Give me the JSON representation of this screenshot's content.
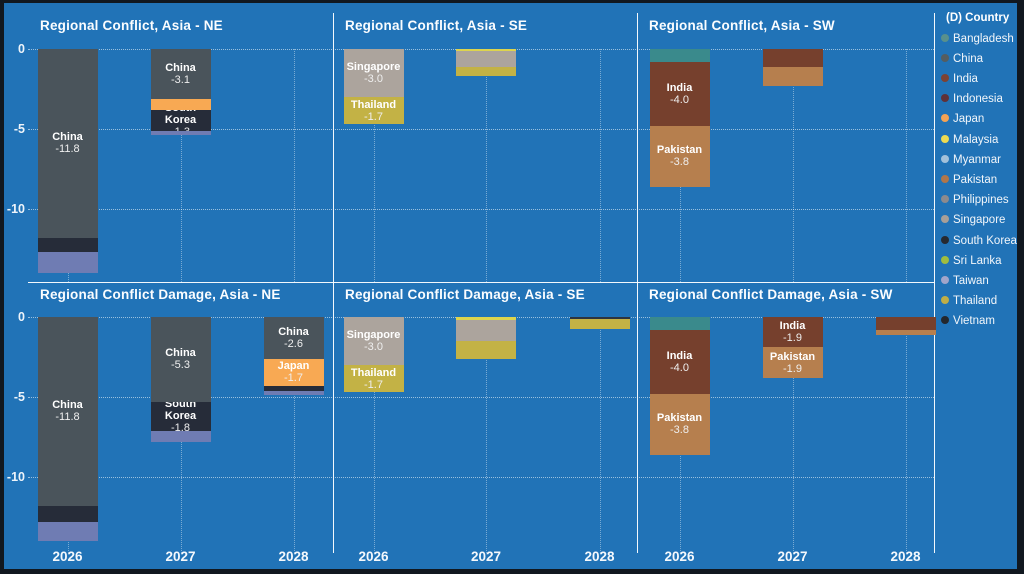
{
  "window": {
    "background_color": "#2173b7",
    "frame_color": "#111820",
    "text_color": "#ffffff"
  },
  "axis": {
    "y_ticks": [
      "0",
      "-5",
      "-10"
    ],
    "years": [
      "2026",
      "2027",
      "2028"
    ]
  },
  "legend": {
    "title": "(D) Country",
    "items": [
      {
        "label": "Bangladesh",
        "color": "#59908c"
      },
      {
        "label": "China",
        "color": "#555d60"
      },
      {
        "label": "India",
        "color": "#7c4233"
      },
      {
        "label": "Indonesia",
        "color": "#5f3138"
      },
      {
        "label": "Japan",
        "color": "#f4a355"
      },
      {
        "label": "Malaysia",
        "color": "#eedb51"
      },
      {
        "label": "Myanmar",
        "color": "#a3c1da"
      },
      {
        "label": "Pakistan",
        "color": "#b0764a"
      },
      {
        "label": "Philippines",
        "color": "#8d8a8d"
      },
      {
        "label": "Singapore",
        "color": "#a89f98"
      },
      {
        "label": "South Korea",
        "color": "#26292f"
      },
      {
        "label": "Sri Lanka",
        "color": "#a0bd3f"
      },
      {
        "label": "Taiwan",
        "color": "#a1a5ca"
      },
      {
        "label": "Thailand",
        "color": "#bfae47"
      },
      {
        "label": "Vietnam",
        "color": "#23272c"
      }
    ]
  },
  "palette": {
    "China": "#4a545b",
    "South Korea": "#262c39",
    "Taiwan": "#6f7cb3",
    "Japan": "#f8a953",
    "Singapore": "#aca49d",
    "Thailand": "#c3b245",
    "Malaysia": "#ddd44e",
    "India": "#76402d",
    "Pakistan": "#b67f4e",
    "Bangladesh": "#3a8a8c",
    "Vietnam": "#2c3440"
  },
  "chart_data": [
    {
      "type": "bar",
      "stacked": true,
      "row": 0,
      "col": 0,
      "title": "Regional Conflict, Asia - NE",
      "xlabel": "",
      "ylabel": "",
      "ylim": [
        -14.6,
        0
      ],
      "grid": "dotted",
      "categories": [
        "2026",
        "2027",
        "2028"
      ],
      "stacks": [
        {
          "year": "2026",
          "segments": [
            {
              "country": "China",
              "value": -11.8,
              "show_label": true
            },
            {
              "country": "South Korea",
              "value": -0.9
            },
            {
              "country": "Taiwan",
              "value": -1.3
            }
          ]
        },
        {
          "year": "2027",
          "segments": [
            {
              "country": "China",
              "value": -3.1,
              "show_label": true
            },
            {
              "country": "Japan",
              "value": -0.7
            },
            {
              "country": "South Korea",
              "value": -1.3,
              "show_label": true
            },
            {
              "country": "Taiwan",
              "value": -0.3
            }
          ]
        },
        {
          "year": "2028",
          "segments": []
        }
      ]
    },
    {
      "type": "bar",
      "stacked": true,
      "row": 0,
      "col": 1,
      "title": "Regional Conflict, Asia - SE",
      "xlabel": "",
      "ylabel": "",
      "ylim": [
        -14.6,
        0
      ],
      "grid": "dotted",
      "categories": [
        "2026",
        "2027",
        "2028"
      ],
      "stacks": [
        {
          "year": "2026",
          "segments": [
            {
              "country": "Singapore",
              "value": -3.0,
              "show_label": true
            },
            {
              "country": "Thailand",
              "value": -1.7,
              "show_label": true
            }
          ]
        },
        {
          "year": "2027",
          "segments": [
            {
              "country": "Malaysia",
              "value": -0.1
            },
            {
              "country": "Singapore",
              "value": -1.05
            },
            {
              "country": "Thailand",
              "value": -0.55
            }
          ]
        },
        {
          "year": "2028",
          "segments": []
        }
      ]
    },
    {
      "type": "bar",
      "stacked": true,
      "row": 0,
      "col": 2,
      "title": "Regional Conflict, Asia - SW",
      "xlabel": "",
      "ylabel": "",
      "ylim": [
        -14.6,
        0
      ],
      "grid": "dotted",
      "categories": [
        "2026",
        "2027",
        "2028"
      ],
      "stacks": [
        {
          "year": "2026",
          "segments": [
            {
              "country": "Bangladesh",
              "value": -0.8
            },
            {
              "country": "India",
              "value": -4.0,
              "show_label": true
            },
            {
              "country": "Pakistan",
              "value": -3.8,
              "show_label": true
            }
          ]
        },
        {
          "year": "2027",
          "segments": [
            {
              "country": "India",
              "value": -1.1
            },
            {
              "country": "Pakistan",
              "value": -1.2
            }
          ]
        },
        {
          "year": "2028",
          "segments": []
        }
      ]
    },
    {
      "type": "bar",
      "stacked": true,
      "row": 1,
      "col": 0,
      "title": "Regional Conflict Damage, Asia - NE",
      "xlabel": "",
      "ylabel": "",
      "ylim": [
        -14.75,
        0
      ],
      "grid": "dotted",
      "categories": [
        "2026",
        "2027",
        "2028"
      ],
      "stacks": [
        {
          "year": "2026",
          "segments": [
            {
              "country": "China",
              "value": -11.8,
              "show_label": true
            },
            {
              "country": "South Korea",
              "value": -1.0
            },
            {
              "country": "Taiwan",
              "value": -1.2
            }
          ]
        },
        {
          "year": "2027",
          "segments": [
            {
              "country": "China",
              "value": -5.3,
              "show_label": true
            },
            {
              "country": "South Korea",
              "value": -1.8,
              "show_label": true
            },
            {
              "country": "Taiwan",
              "value": -0.7
            }
          ]
        },
        {
          "year": "2028",
          "segments": [
            {
              "country": "China",
              "value": -2.6,
              "show_label": true
            },
            {
              "country": "Japan",
              "value": -1.7,
              "show_label": true
            },
            {
              "country": "South Korea",
              "value": -0.35
            },
            {
              "country": "Taiwan",
              "value": -0.25
            }
          ]
        }
      ]
    },
    {
      "type": "bar",
      "stacked": true,
      "row": 1,
      "col": 1,
      "title": "Regional Conflict Damage, Asia - SE",
      "xlabel": "",
      "ylabel": "",
      "ylim": [
        -14.75,
        0
      ],
      "grid": "dotted",
      "categories": [
        "2026",
        "2027",
        "2028"
      ],
      "stacks": [
        {
          "year": "2026",
          "segments": [
            {
              "country": "Singapore",
              "value": -3.0,
              "show_label": true
            },
            {
              "country": "Thailand",
              "value": -1.7,
              "show_label": true
            }
          ]
        },
        {
          "year": "2027",
          "segments": [
            {
              "country": "Malaysia",
              "value": -0.2
            },
            {
              "country": "Singapore",
              "value": -1.3
            },
            {
              "country": "Thailand",
              "value": -1.1
            }
          ]
        },
        {
          "year": "2028",
          "segments": [
            {
              "country": "Vietnam",
              "value": -0.15
            },
            {
              "country": "Thailand",
              "value": -0.6
            }
          ]
        }
      ]
    },
    {
      "type": "bar",
      "stacked": true,
      "row": 1,
      "col": 2,
      "title": "Regional Conflict Damage, Asia - SW",
      "xlabel": "",
      "ylabel": "",
      "ylim": [
        -14.75,
        0
      ],
      "grid": "dotted",
      "categories": [
        "2026",
        "2027",
        "2028"
      ],
      "stacks": [
        {
          "year": "2026",
          "segments": [
            {
              "country": "Bangladesh",
              "value": -0.8
            },
            {
              "country": "India",
              "value": -4.0,
              "show_label": true
            },
            {
              "country": "Pakistan",
              "value": -3.8,
              "show_label": true
            }
          ]
        },
        {
          "year": "2027",
          "segments": [
            {
              "country": "India",
              "value": -1.9,
              "show_label": true
            },
            {
              "country": "Pakistan",
              "value": -1.9,
              "show_label": true
            }
          ]
        },
        {
          "year": "2028",
          "segments": [
            {
              "country": "India",
              "value": -0.8
            },
            {
              "country": "Pakistan",
              "value": -0.35
            }
          ]
        }
      ]
    }
  ]
}
